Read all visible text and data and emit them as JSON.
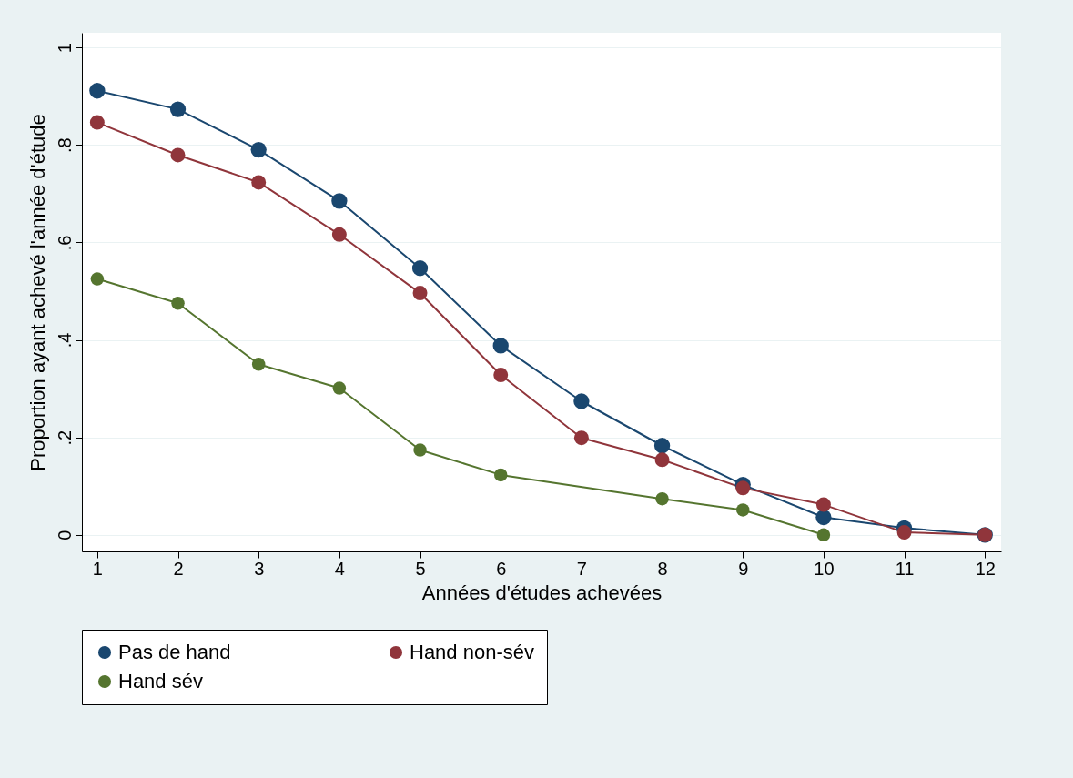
{
  "chart_data": {
    "type": "line",
    "xlabel": "Années d'études achevées",
    "ylabel": "Proportion ayant achevé l'année d'étude",
    "x": [
      1,
      2,
      3,
      4,
      5,
      6,
      7,
      8,
      9,
      10,
      11,
      12
    ],
    "series": [
      {
        "name": "Pas de hand",
        "color": "#1a476f",
        "values": [
          0.911,
          0.873,
          0.79,
          0.685,
          0.547,
          0.388,
          0.274,
          0.183,
          0.103,
          0.036,
          0.014,
          0
        ]
      },
      {
        "name": "Hand non-sév",
        "color": "#90353b",
        "values": [
          0.846,
          0.779,
          0.723,
          0.616,
          0.496,
          0.328,
          0.199,
          0.154,
          0.096,
          0.062,
          0.005,
          0
        ]
      },
      {
        "name": "Hand sév",
        "color": "#55752f",
        "x": [
          1,
          2,
          3,
          4,
          5,
          6,
          8,
          9,
          10
        ],
        "values": [
          0.525,
          0.475,
          0.35,
          0.301,
          0.174,
          0.123,
          0.074,
          0.051,
          0
        ]
      }
    ],
    "xlim": [
      0.81,
      12.2
    ],
    "xticks": [
      1,
      2,
      3,
      4,
      5,
      6,
      7,
      8,
      9,
      10,
      11,
      12
    ],
    "ylim": [
      -0.034,
      1.03
    ],
    "yticks": [
      0,
      {
        "value": 0.2,
        "label": ".2"
      },
      {
        "value": 0.4,
        "label": ".4"
      },
      {
        "value": 0.6,
        "label": ".6"
      },
      {
        "value": 0.8,
        "label": ".8"
      },
      1
    ],
    "grid": "y",
    "legend": "bottom",
    "marker": "circle",
    "line_style": "solid"
  }
}
